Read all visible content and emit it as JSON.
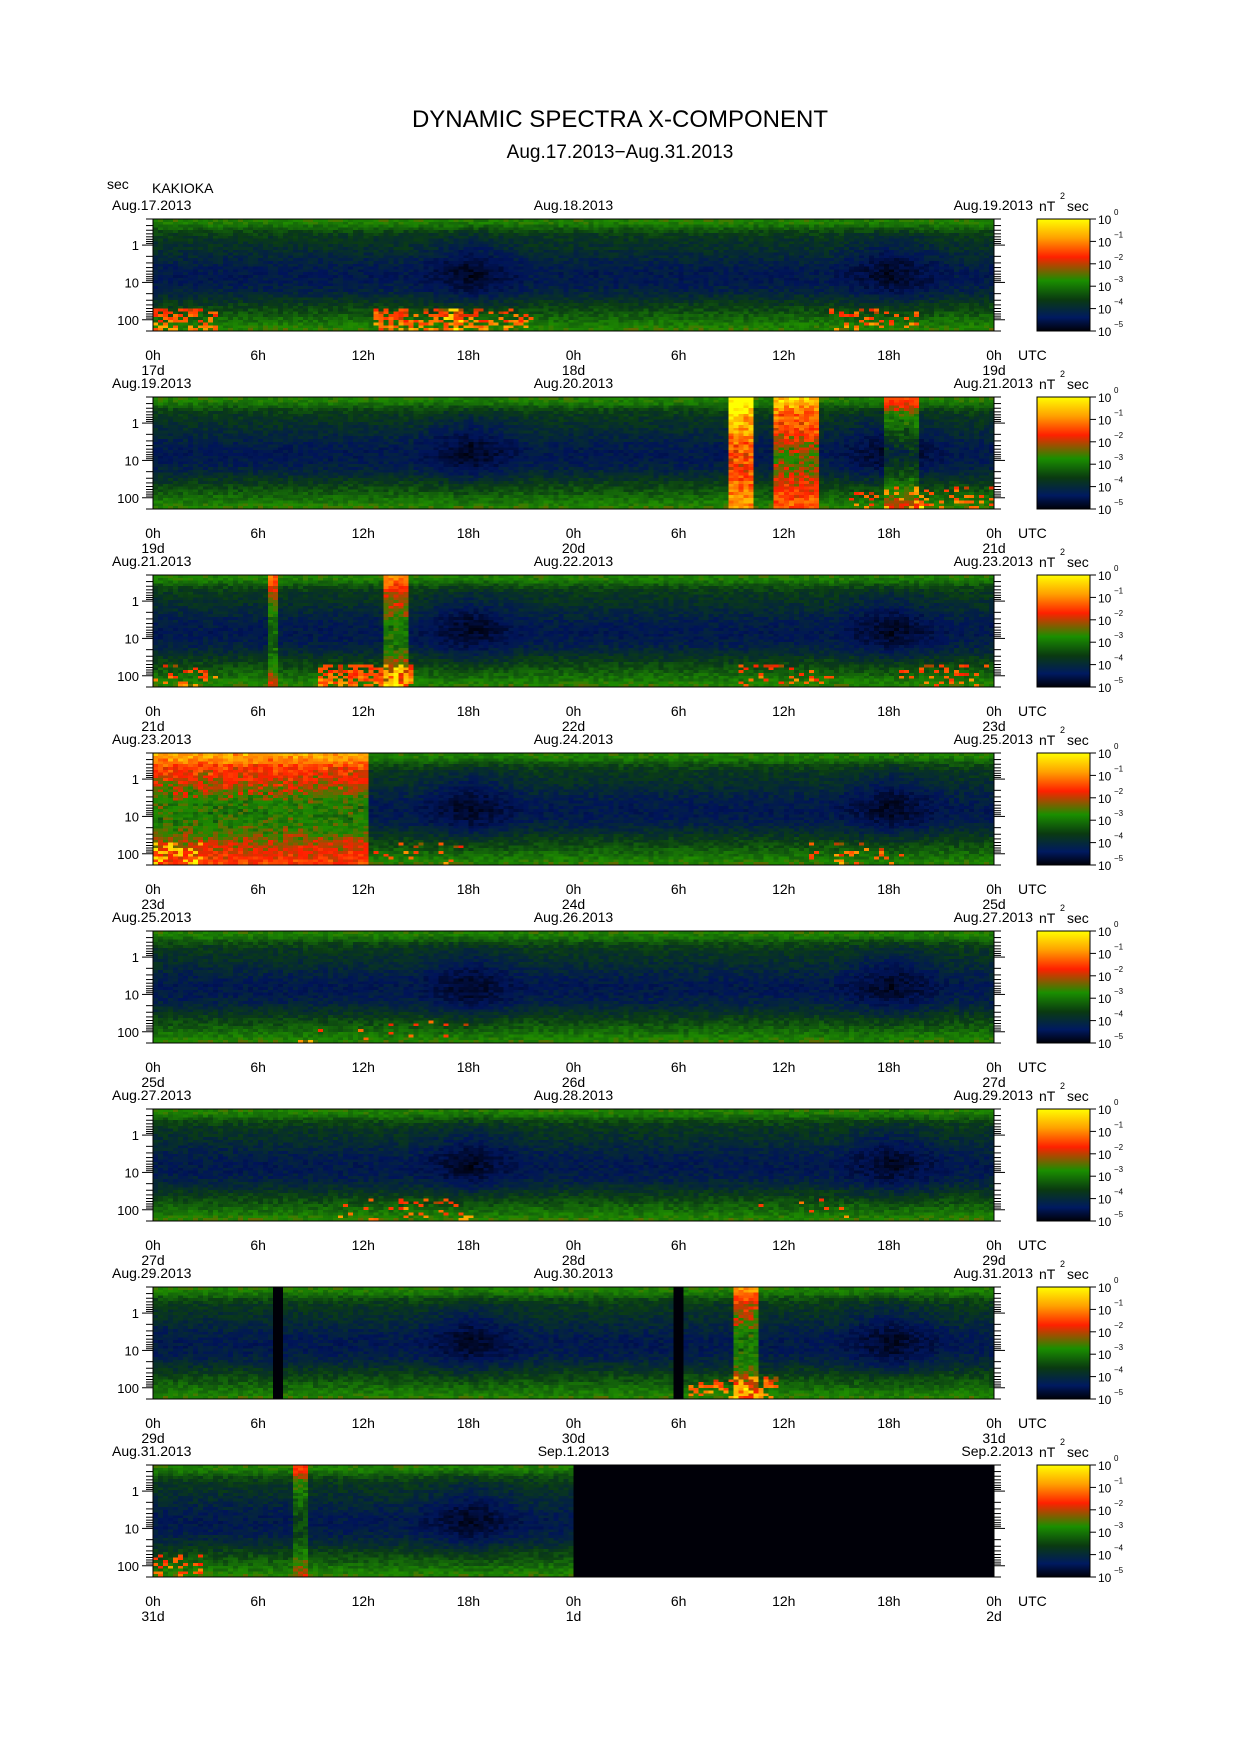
{
  "title": "DYNAMIC SPECTRA X-COMPONENT",
  "subtitle": "Aug.17.2013−Aug.31.2013",
  "ylabel": "sec",
  "station": "KAKIOKA",
  "colorbar": {
    "unit_label": "nT",
    "unit_exp": "2",
    "unit_sec": "sec",
    "ticks": [
      {
        "base": "10",
        "exp": "0"
      },
      {
        "base": "10",
        "exp": "−1"
      },
      {
        "base": "10",
        "exp": "−2"
      },
      {
        "base": "10",
        "exp": "−3"
      },
      {
        "base": "10",
        "exp": "−4"
      },
      {
        "base": "10",
        "exp": "−5"
      }
    ],
    "colors": [
      "#ffff00",
      "#ffa000",
      "#ff2000",
      "#1a8f00",
      "#0a3a10",
      "#001a60",
      "#000008"
    ]
  },
  "y_tick_labels": [
    "1",
    "10",
    "100"
  ],
  "x_tick_labels": [
    "0h",
    "6h",
    "12h",
    "18h",
    "0h",
    "6h",
    "12h",
    "18h",
    "0h"
  ],
  "utc_label": "UTC",
  "chart_data": [
    {
      "type": "heatmap",
      "dates": [
        "Aug.17.2013",
        "Aug.18.2013",
        "Aug.19.2013"
      ],
      "days": [
        "17d",
        "18d",
        "19d"
      ],
      "y_period_sec_range": [
        0.2,
        200
      ],
      "y_scale": "log",
      "color_range_nT2sec": [
        1e-05,
        1
      ],
      "events": [],
      "bursts": [
        [
          1,
          22
        ],
        [
          15,
          25
        ],
        [
          19,
          16
        ],
        [
          41,
          7
        ]
      ],
      "gaps": [],
      "no_data_from": null
    },
    {
      "type": "heatmap",
      "dates": [
        "Aug.19.2013",
        "Aug.20.2013",
        "Aug.21.2013"
      ],
      "days": [
        "19d",
        "20d",
        "21d"
      ],
      "y_period_sec_range": [
        0.2,
        200
      ],
      "y_scale": "log",
      "color_range_nT2sec": [
        1e-05,
        1
      ],
      "events": [
        [
          32.6,
          34.2,
          1.0
        ],
        [
          35.2,
          37.8,
          0.7
        ],
        [
          41.5,
          43.5,
          0.35
        ]
      ],
      "bursts": [
        [
          42,
          5
        ],
        [
          46,
          6
        ]
      ],
      "gaps": [],
      "no_data_from": null
    },
    {
      "type": "heatmap",
      "dates": [
        "Aug.21.2013",
        "Aug.22.2013",
        "Aug.23.2013"
      ],
      "days": [
        "21d",
        "22d",
        "23d"
      ],
      "y_period_sec_range": [
        0.2,
        200
      ],
      "y_scale": "log",
      "color_range_nT2sec": [
        1e-05,
        1
      ],
      "events": [
        [
          6.5,
          7.0,
          0.4
        ],
        [
          13.0,
          14.5,
          0.5
        ]
      ],
      "bursts": [
        [
          1,
          10
        ],
        [
          12,
          30
        ],
        [
          36,
          8
        ],
        [
          45,
          8
        ]
      ],
      "gaps": [],
      "no_data_from": null
    },
    {
      "type": "heatmap",
      "dates": [
        "Aug.23.2013",
        "Aug.24.2013",
        "Aug.25.2013"
      ],
      "days": [
        "23d",
        "24d",
        "25d"
      ],
      "y_period_sec_range": [
        0.2,
        200
      ],
      "y_scale": "log",
      "color_range_nT2sec": [
        1e-05,
        1
      ],
      "events": [
        [
          0.0,
          12.0,
          0.55
        ]
      ],
      "bursts": [
        [
          0,
          13
        ],
        [
          15,
          3
        ],
        [
          40,
          6
        ]
      ],
      "gaps": [],
      "no_data_from": null
    },
    {
      "type": "heatmap",
      "dates": [
        "Aug.25.2013",
        "Aug.26.2013",
        "Aug.27.2013"
      ],
      "days": [
        "25d",
        "26d",
        "27d"
      ],
      "y_period_sec_range": [
        0.2,
        200
      ],
      "y_scale": "log",
      "color_range_nT2sec": [
        1e-05,
        1
      ],
      "events": [],
      "bursts": [
        [
          10,
          1
        ],
        [
          16,
          2
        ]
      ],
      "gaps": [],
      "no_data_from": null
    },
    {
      "type": "heatmap",
      "dates": [
        "Aug.27.2013",
        "Aug.28.2013",
        "Aug.29.2013"
      ],
      "days": [
        "27d",
        "28d",
        "29d"
      ],
      "y_period_sec_range": [
        0.2,
        200
      ],
      "y_scale": "log",
      "color_range_nT2sec": [
        1e-05,
        1
      ],
      "events": [],
      "bursts": [
        [
          13,
          5
        ],
        [
          16,
          6
        ],
        [
          37,
          2
        ]
      ],
      "gaps": [],
      "no_data_from": null
    },
    {
      "type": "heatmap",
      "dates": [
        "Aug.29.2013",
        "Aug.30.2013",
        "Aug.31.2013"
      ],
      "days": [
        "29d",
        "30d",
        "31d"
      ],
      "y_period_sec_range": [
        0.2,
        200
      ],
      "y_scale": "log",
      "color_range_nT2sec": [
        1e-05,
        1
      ],
      "events": [
        [
          33.0,
          34.5,
          0.5
        ]
      ],
      "bursts": [
        [
          33,
          15
        ]
      ],
      "gaps": [
        [
          6.8,
          7.15
        ],
        [
          29.7,
          30.2
        ]
      ],
      "no_data_from": null
    },
    {
      "type": "heatmap",
      "dates": [
        "Aug.31.2013",
        "Sep.1.2013",
        "Sep.2.2013"
      ],
      "days": [
        "31d",
        "1d",
        "2d"
      ],
      "y_period_sec_range": [
        0.2,
        200
      ],
      "y_scale": "log",
      "color_range_nT2sec": [
        1e-05,
        1
      ],
      "events": [
        [
          8.0,
          8.6,
          0.3
        ]
      ],
      "bursts": [
        [
          0,
          12
        ]
      ],
      "gaps": [],
      "no_data_from": 24
    }
  ]
}
